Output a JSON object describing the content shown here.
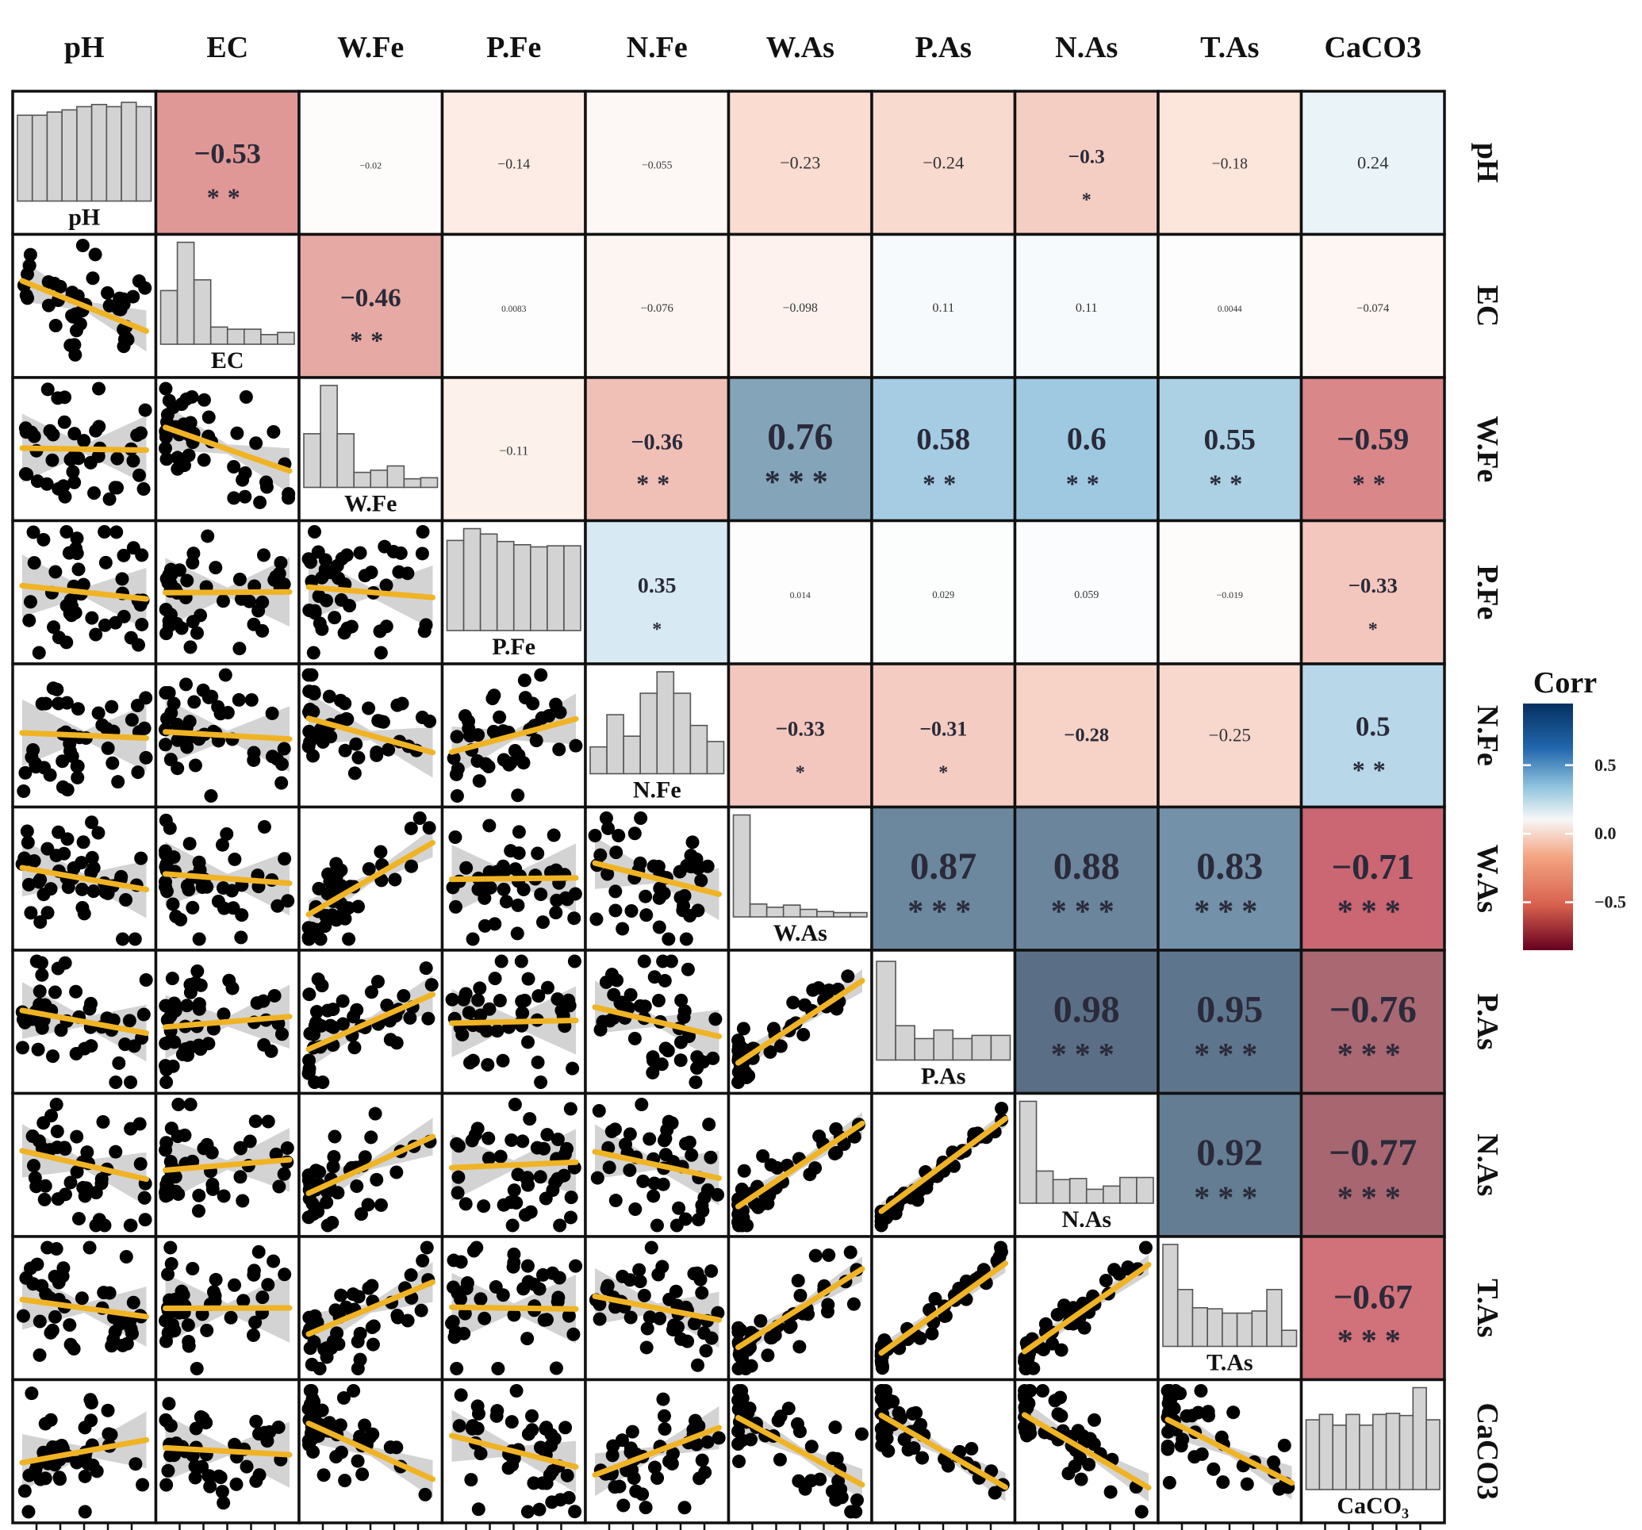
{
  "variables": [
    "pH",
    "EC",
    "W.Fe",
    "P.Fe",
    "N.Fe",
    "W.As",
    "P.As",
    "N.As",
    "T.As",
    "CaCO3"
  ],
  "hist_labels": [
    "pH",
    "EC",
    "W.Fe",
    "P.Fe",
    "N.Fe",
    "W.As",
    "P.As",
    "N.As",
    "T.As",
    "CaCO₃"
  ],
  "legend": {
    "title": "Corr",
    "ticks": [
      "0.5",
      "0.0",
      "−0.5"
    ],
    "tick_values": [
      0.5,
      0.0,
      -0.5
    ],
    "range": [
      -0.85,
      0.95
    ],
    "colors": {
      "negative": "#67001f",
      "neutral": "#f7f7f7",
      "positive": "#053061"
    }
  },
  "colors": {
    "histogram_fill": "#d3d3d3",
    "fit_line": "#f0b323",
    "confidence_band": "#c8c8c8",
    "points": "#000000"
  },
  "chart_data": {
    "type": "heatmap",
    "subtype": "correlation-matrix",
    "variables": [
      "pH",
      "EC",
      "W.Fe",
      "P.Fe",
      "N.Fe",
      "W.As",
      "P.As",
      "N.As",
      "T.As",
      "CaCO3"
    ],
    "correlations": [
      {
        "row": "pH",
        "col": "EC",
        "r": -0.53,
        "label": "−0.53",
        "sig": "**"
      },
      {
        "row": "pH",
        "col": "W.Fe",
        "r": -0.02,
        "label": "−0.02",
        "sig": ""
      },
      {
        "row": "pH",
        "col": "P.Fe",
        "r": -0.14,
        "label": "−0.14",
        "sig": ""
      },
      {
        "row": "pH",
        "col": "N.Fe",
        "r": -0.055,
        "label": "−0.055",
        "sig": ""
      },
      {
        "row": "pH",
        "col": "W.As",
        "r": -0.23,
        "label": "−0.23",
        "sig": ""
      },
      {
        "row": "pH",
        "col": "P.As",
        "r": -0.24,
        "label": "−0.24",
        "sig": ""
      },
      {
        "row": "pH",
        "col": "N.As",
        "r": -0.3,
        "label": "−0.3",
        "sig": "*"
      },
      {
        "row": "pH",
        "col": "T.As",
        "r": -0.18,
        "label": "−0.18",
        "sig": ""
      },
      {
        "row": "pH",
        "col": "CaCO3",
        "r": 0.24,
        "label": "0.24",
        "sig": ""
      },
      {
        "row": "EC",
        "col": "W.Fe",
        "r": -0.46,
        "label": "−0.46",
        "sig": "**"
      },
      {
        "row": "EC",
        "col": "P.Fe",
        "r": 0.0083,
        "label": "0.0083",
        "sig": ""
      },
      {
        "row": "EC",
        "col": "N.Fe",
        "r": -0.076,
        "label": "−0.076",
        "sig": ""
      },
      {
        "row": "EC",
        "col": "W.As",
        "r": -0.098,
        "label": "−0.098",
        "sig": ""
      },
      {
        "row": "EC",
        "col": "P.As",
        "r": 0.11,
        "label": "0.11",
        "sig": ""
      },
      {
        "row": "EC",
        "col": "N.As",
        "r": 0.11,
        "label": "0.11",
        "sig": ""
      },
      {
        "row": "EC",
        "col": "T.As",
        "r": 0.0044,
        "label": "0.0044",
        "sig": ""
      },
      {
        "row": "EC",
        "col": "CaCO3",
        "r": -0.074,
        "label": "−0.074",
        "sig": ""
      },
      {
        "row": "W.Fe",
        "col": "P.Fe",
        "r": -0.11,
        "label": "−0.11",
        "sig": ""
      },
      {
        "row": "W.Fe",
        "col": "N.Fe",
        "r": -0.36,
        "label": "−0.36",
        "sig": "**"
      },
      {
        "row": "W.Fe",
        "col": "W.As",
        "r": 0.76,
        "label": "0.76",
        "sig": "***"
      },
      {
        "row": "W.Fe",
        "col": "P.As",
        "r": 0.58,
        "label": "0.58",
        "sig": "**"
      },
      {
        "row": "W.Fe",
        "col": "N.As",
        "r": 0.6,
        "label": "0.6",
        "sig": "**"
      },
      {
        "row": "W.Fe",
        "col": "T.As",
        "r": 0.55,
        "label": "0.55",
        "sig": "**"
      },
      {
        "row": "W.Fe",
        "col": "CaCO3",
        "r": -0.59,
        "label": "−0.59",
        "sig": "**"
      },
      {
        "row": "P.Fe",
        "col": "N.Fe",
        "r": 0.35,
        "label": "0.35",
        "sig": "*"
      },
      {
        "row": "P.Fe",
        "col": "W.As",
        "r": 0.014,
        "label": "0.014",
        "sig": ""
      },
      {
        "row": "P.Fe",
        "col": "P.As",
        "r": 0.029,
        "label": "0.029",
        "sig": ""
      },
      {
        "row": "P.Fe",
        "col": "N.As",
        "r": 0.059,
        "label": "0.059",
        "sig": ""
      },
      {
        "row": "P.Fe",
        "col": "T.As",
        "r": -0.019,
        "label": "−0.019",
        "sig": ""
      },
      {
        "row": "P.Fe",
        "col": "CaCO3",
        "r": -0.33,
        "label": "−0.33",
        "sig": "*"
      },
      {
        "row": "N.Fe",
        "col": "W.As",
        "r": -0.33,
        "label": "−0.33",
        "sig": "*"
      },
      {
        "row": "N.Fe",
        "col": "P.As",
        "r": -0.31,
        "label": "−0.31",
        "sig": "*"
      },
      {
        "row": "N.Fe",
        "col": "N.As",
        "r": -0.28,
        "label": "−0.28",
        "sig": ""
      },
      {
        "row": "N.Fe",
        "col": "T.As",
        "r": -0.25,
        "label": "−0.25",
        "sig": ""
      },
      {
        "row": "N.Fe",
        "col": "CaCO3",
        "r": 0.5,
        "label": "0.5",
        "sig": "**"
      },
      {
        "row": "W.As",
        "col": "P.As",
        "r": 0.87,
        "label": "0.87",
        "sig": "***"
      },
      {
        "row": "W.As",
        "col": "N.As",
        "r": 0.88,
        "label": "0.88",
        "sig": "***"
      },
      {
        "row": "W.As",
        "col": "T.As",
        "r": 0.83,
        "label": "0.83",
        "sig": "***"
      },
      {
        "row": "W.As",
        "col": "CaCO3",
        "r": -0.71,
        "label": "−0.71",
        "sig": "***"
      },
      {
        "row": "P.As",
        "col": "N.As",
        "r": 0.98,
        "label": "0.98",
        "sig": "***"
      },
      {
        "row": "P.As",
        "col": "T.As",
        "r": 0.95,
        "label": "0.95",
        "sig": "***"
      },
      {
        "row": "P.As",
        "col": "CaCO3",
        "r": -0.76,
        "label": "−0.76",
        "sig": "***"
      },
      {
        "row": "N.As",
        "col": "T.As",
        "r": 0.92,
        "label": "0.92",
        "sig": "***"
      },
      {
        "row": "N.As",
        "col": "CaCO3",
        "r": -0.77,
        "label": "−0.77",
        "sig": "***"
      },
      {
        "row": "T.As",
        "col": "CaCO3",
        "r": -0.67,
        "label": "−0.67",
        "sig": "***"
      }
    ],
    "histograms": [
      {
        "variable": "pH",
        "counts": [
          8,
          8,
          8.3,
          8.5,
          8.8,
          9,
          8.8,
          9.2,
          8.8
        ]
      },
      {
        "variable": "EC",
        "counts": [
          5,
          9.5,
          6,
          1.6,
          1.4,
          1.4,
          0.9,
          1.1
        ]
      },
      {
        "variable": "W.Fe",
        "counts": [
          5,
          9.5,
          5,
          1.4,
          1.6,
          2,
          0.8,
          0.9
        ]
      },
      {
        "variable": "P.Fe",
        "counts": [
          8.4,
          9.5,
          9,
          8.3,
          8,
          7.8,
          7.9,
          7.9
        ]
      },
      {
        "variable": "N.Fe",
        "counts": [
          2.5,
          5.5,
          3.5,
          7.5,
          9.5,
          7.5,
          4.5,
          3
        ]
      },
      {
        "variable": "W.As",
        "counts": [
          9.5,
          1.2,
          0.9,
          1.1,
          0.7,
          0.5,
          0.4,
          0.4
        ]
      },
      {
        "variable": "P.As",
        "counts": [
          9.2,
          3.2,
          2,
          2.8,
          2,
          2.3,
          2.3
        ]
      },
      {
        "variable": "N.As",
        "counts": [
          9.5,
          3,
          2.2,
          2.3,
          1.3,
          1.6,
          2.4,
          2.4
        ]
      },
      {
        "variable": "T.As",
        "counts": [
          9.5,
          5.3,
          3.6,
          3.5,
          3.1,
          3.1,
          3.3,
          5.3,
          1.5
        ]
      },
      {
        "variable": "CaCO3",
        "counts": [
          6.5,
          7,
          6,
          7,
          6,
          7,
          7.1,
          6.9,
          9.5,
          6.5
        ]
      }
    ],
    "fit": "linear regression with confidence band (lower triangle scatter plots)",
    "legend_position": "right"
  }
}
